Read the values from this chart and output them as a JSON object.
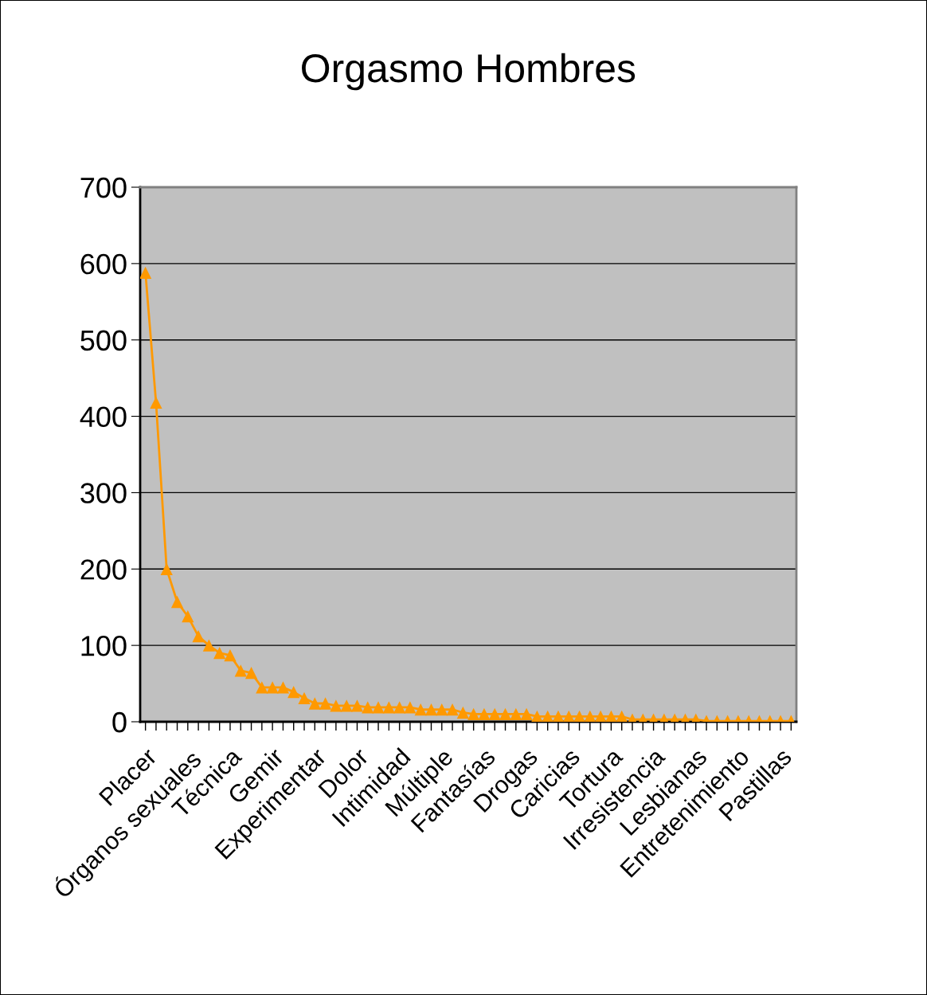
{
  "chart_data": {
    "type": "line",
    "title": "Orgasmo Hombres",
    "categories": [
      "Placer",
      null,
      null,
      null,
      "Órganos sexuales",
      null,
      null,
      null,
      "Técnica",
      null,
      null,
      null,
      "Gemir",
      null,
      null,
      null,
      "Experimentar",
      null,
      null,
      null,
      "Dolor",
      null,
      null,
      null,
      "Intimidad",
      null,
      null,
      null,
      "Múltiple",
      null,
      null,
      null,
      "Fantasías",
      null,
      null,
      null,
      "Drogas",
      null,
      null,
      null,
      "Caricias",
      null,
      null,
      null,
      "Tortura",
      null,
      null,
      null,
      "Irresistencia",
      null,
      null,
      null,
      "Lesbianas",
      null,
      null,
      null,
      "Entretenimiento",
      null,
      null,
      null,
      "Pastillas",
      null
    ],
    "series": [
      {
        "color": "#ff9900",
        "values": [
          588,
          418,
          200,
          157,
          138,
          112,
          100,
          90,
          87,
          67,
          64,
          45,
          45,
          45,
          39,
          31,
          24,
          24,
          21,
          21,
          21,
          19,
          19,
          19,
          19,
          19,
          16,
          16,
          16,
          16,
          12,
          10,
          10,
          10,
          10,
          10,
          10,
          7,
          7,
          7,
          7,
          7,
          7,
          7,
          7,
          7,
          3,
          3,
          3,
          3,
          3,
          3,
          3,
          1,
          1,
          1,
          1,
          1,
          1,
          1,
          1,
          1
        ]
      }
    ],
    "ylim": [
      0,
      700
    ],
    "yticks": [
      0,
      100,
      200,
      300,
      400,
      500,
      600,
      700
    ],
    "grid": "y",
    "marker": "triangle",
    "line_style": "solid"
  }
}
